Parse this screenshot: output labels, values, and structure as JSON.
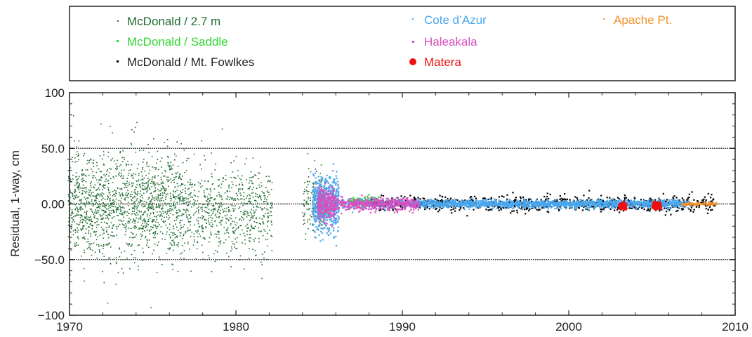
{
  "chart_data": {
    "type": "scatter",
    "title": "",
    "xlabel": "",
    "ylabel": "Residual, 1-way, cm",
    "xlim": [
      1970,
      2010
    ],
    "ylim": [
      -100,
      100
    ],
    "x_ticks": [
      1970,
      1980,
      1990,
      2000,
      2010
    ],
    "x_tick_labels": [
      "1970",
      "1980",
      "1990",
      "2000",
      "2010"
    ],
    "y_ticks": [
      -100,
      -50,
      0,
      50,
      100
    ],
    "y_tick_labels": [
      "−100",
      "−50.0",
      "0.00",
      "50.0",
      "100"
    ],
    "reference_lines": [
      -50,
      0,
      50
    ],
    "legend_position": "top (outside plot, boxed)",
    "series": [
      {
        "name": "McDonald / 2.7 m",
        "color": "#1e6b2e",
        "marker": "small-dot",
        "segments": [
          {
            "x_range": [
              1969.9,
              1976.9
            ],
            "center": 0,
            "spread": 42,
            "density": 1500
          },
          {
            "x_range": [
              1976.9,
              1982.2
            ],
            "center": -5,
            "spread": 35,
            "density": 700
          },
          {
            "x_range": [
              1984.0,
              1985.3
            ],
            "center": 0,
            "spread": 30,
            "density": 120
          }
        ]
      },
      {
        "name": "McDonald / Saddle",
        "color": "#2fd62f",
        "marker": "dot",
        "segments": [
          {
            "x_range": [
              1985.0,
              1985.6
            ],
            "center": -5,
            "spread": 10,
            "density": 60
          },
          {
            "x_range": [
              1986.8,
              1988.6
            ],
            "center": 2,
            "spread": 4,
            "density": 120
          }
        ]
      },
      {
        "name": "McDonald / Mt. Fowlkes",
        "color": "#000000",
        "marker": "dot",
        "segments": [
          {
            "x_range": [
              1988.0,
              2008.8
            ],
            "center": 0,
            "spread": 6,
            "density": 900
          }
        ]
      },
      {
        "name": "Cote d’Azur",
        "color": "#4aa7ee",
        "marker": "dot",
        "segments": [
          {
            "x_range": [
              1984.6,
              1986.2
            ],
            "center": 0,
            "spread": 22,
            "density": 600
          },
          {
            "x_range": [
              1986.2,
              1990.5
            ],
            "center": 0,
            "spread": 4,
            "density": 200
          },
          {
            "x_range": [
              1990.5,
              2007.2
            ],
            "center": 0,
            "spread": 3,
            "density": 1800
          }
        ]
      },
      {
        "name": "Haleakala",
        "color": "#d94fc0",
        "marker": "dot",
        "segments": [
          {
            "x_range": [
              1984.9,
              1986.0
            ],
            "center": 0,
            "spread": 12,
            "density": 300
          },
          {
            "x_range": [
              1986.0,
              1991.0
            ],
            "center": 0,
            "spread": 5,
            "density": 500
          }
        ]
      },
      {
        "name": "Matera",
        "color": "#ee1111",
        "marker": "large-dot",
        "segments": [
          {
            "x_range": [
              2003.1,
              2003.4
            ],
            "center": -2,
            "spread": 2,
            "density": 40
          },
          {
            "x_range": [
              2005.1,
              2005.5
            ],
            "center": -2,
            "spread": 2,
            "density": 40
          }
        ]
      },
      {
        "name": "Apache Pt.",
        "color": "#f0922c",
        "marker": "dot",
        "segments": [
          {
            "x_range": [
              2006.8,
              2008.9
            ],
            "center": 0,
            "spread": 1,
            "density": 120
          }
        ]
      }
    ]
  },
  "legend": {
    "items": [
      {
        "label": "McDonald / 2.7 m",
        "color": "#1e6b2e"
      },
      {
        "label": "McDonald / Saddle",
        "color": "#2fd62f"
      },
      {
        "label": "McDonald / Mt. Fowlkes",
        "color": "#222222"
      },
      {
        "label": "Cote d’Azur",
        "color": "#4aa7ee"
      },
      {
        "label": "Haleakala",
        "color": "#d94fc0"
      },
      {
        "label": "Matera",
        "color": "#ee1111"
      },
      {
        "label": "Apache Pt.",
        "color": "#f0922c"
      }
    ]
  }
}
